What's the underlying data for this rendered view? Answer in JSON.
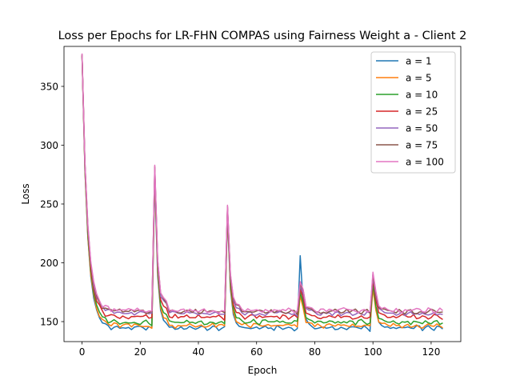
{
  "chart_data": {
    "type": "line",
    "title": "Loss per Epochs for LR-FHN COMPAS using Fairness Weight a - Client 2",
    "xlabel": "Epoch",
    "ylabel": "Loss",
    "xlim": [
      -6.2,
      130.2
    ],
    "ylim": [
      133,
      384
    ],
    "xticks": [
      0,
      20,
      40,
      60,
      80,
      100,
      120
    ],
    "yticks": [
      150,
      200,
      250,
      300,
      350
    ],
    "grid": false,
    "legend": "top-right",
    "x_range": [
      0,
      124
    ],
    "round_length": 25,
    "series": [
      {
        "name": "a = 1",
        "color": "#1f77b4",
        "plateau": 144.5,
        "peaks": [
          376,
          270,
          240,
          206,
          190
        ],
        "bump": [
          30,
          14,
          7,
          4,
          2.5
        ]
      },
      {
        "name": "a = 5",
        "color": "#ff7f0e",
        "plateau": 146.5,
        "peaks": [
          376,
          275,
          242,
          172,
          178
        ],
        "bump": [
          34,
          16,
          8,
          4.5,
          3
        ]
      },
      {
        "name": "a = 10",
        "color": "#2ca02c",
        "plateau": 149.5,
        "peaks": [
          376,
          277,
          244,
          175,
          182
        ],
        "bump": [
          36,
          18,
          9,
          5,
          3.5
        ]
      },
      {
        "name": "a = 25",
        "color": "#d62728",
        "plateau": 154,
        "peaks": [
          377,
          279,
          246,
          178,
          186
        ],
        "bump": [
          38,
          20,
          10,
          5.5,
          4
        ]
      },
      {
        "name": "a = 50",
        "color": "#9467bd",
        "plateau": 157,
        "peaks": [
          377,
          281,
          247,
          180,
          188
        ],
        "bump": [
          40,
          22,
          11,
          6,
          4.5
        ]
      },
      {
        "name": "a = 75",
        "color": "#8c564b",
        "plateau": 158.5,
        "peaks": [
          377,
          282,
          248,
          182,
          190
        ],
        "bump": [
          42,
          23,
          12,
          6.5,
          5
        ]
      },
      {
        "name": "a = 100",
        "color": "#e377c2",
        "plateau": 159.5,
        "peaks": [
          378,
          283,
          249,
          184,
          192
        ],
        "bump": [
          44,
          25,
          13,
          7,
          5.5
        ]
      }
    ]
  }
}
